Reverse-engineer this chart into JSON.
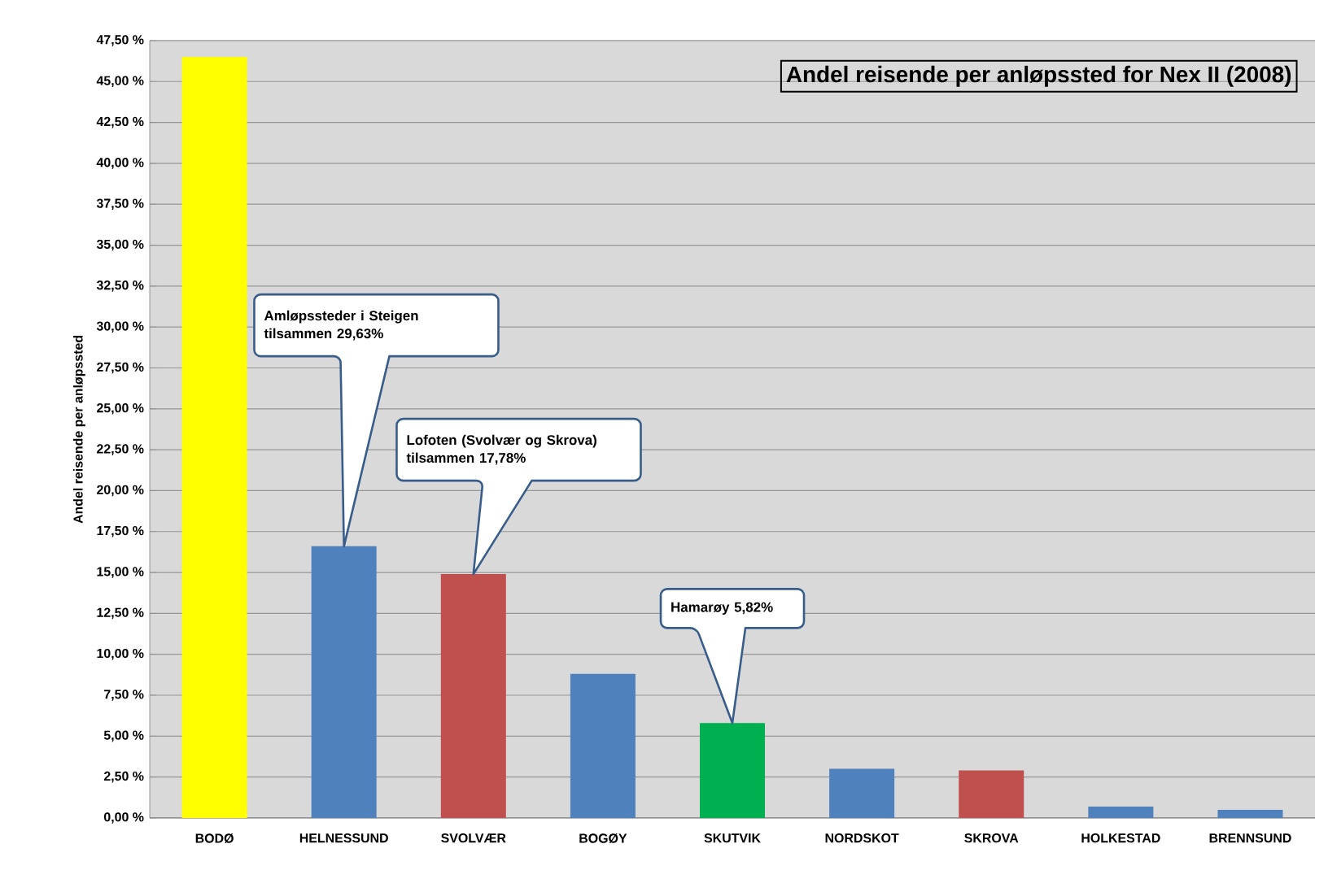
{
  "chart_data": {
    "type": "bar",
    "title": "Andel reisende per anløpssted for Nex II (2008)",
    "ylabel": "Andel reisende per anløpssted",
    "categories": [
      "BODØ",
      "HELNESSUND",
      "SVOLVÆR",
      "BOGØY",
      "SKUTVIK",
      "NORDSKOT",
      "SKROVA",
      "HOLKESTAD",
      "BRENNSUND"
    ],
    "values": [
      46.5,
      16.6,
      14.9,
      8.8,
      5.8,
      3.0,
      2.9,
      0.7,
      0.5
    ],
    "colors": [
      "#ffff00",
      "#4f81bd",
      "#c0504d",
      "#4f81bd",
      "#00b050",
      "#4f81bd",
      "#c0504d",
      "#4f81bd",
      "#4f81bd"
    ],
    "ylim": [
      0,
      47.5
    ],
    "yticks": [
      {
        "value": 0,
        "label": "0,00 %"
      },
      {
        "value": 2.5,
        "label": "2,50 %"
      },
      {
        "value": 5,
        "label": "5,00 %"
      },
      {
        "value": 7.5,
        "label": "7,50 %"
      },
      {
        "value": 10,
        "label": "10,00 %"
      },
      {
        "value": 12.5,
        "label": "12,50 %"
      },
      {
        "value": 15,
        "label": "15,00 %"
      },
      {
        "value": 17.5,
        "label": "17,50 %"
      },
      {
        "value": 20,
        "label": "20,00 %"
      },
      {
        "value": 22.5,
        "label": "22,50 %"
      },
      {
        "value": 25,
        "label": "25,00 %"
      },
      {
        "value": 27.5,
        "label": "27,50 %"
      },
      {
        "value": 30,
        "label": "30,00 %"
      },
      {
        "value": 32.5,
        "label": "32,50 %"
      },
      {
        "value": 35,
        "label": "35,00 %"
      },
      {
        "value": 37.5,
        "label": "37,50 %"
      },
      {
        "value": 40,
        "label": "40,00 %"
      },
      {
        "value": 42.5,
        "label": "42,50 %"
      },
      {
        "value": 45,
        "label": "45,00 %"
      },
      {
        "value": 47.5,
        "label": "47,50 %"
      }
    ],
    "grid": "y",
    "annotations": [
      "Amløpssteder i Steigen tilsammen 29,63%",
      "Lofoten (Svolvær og Skrova) tilsammen 17,78%",
      "Hamarøy 5,82%"
    ]
  }
}
